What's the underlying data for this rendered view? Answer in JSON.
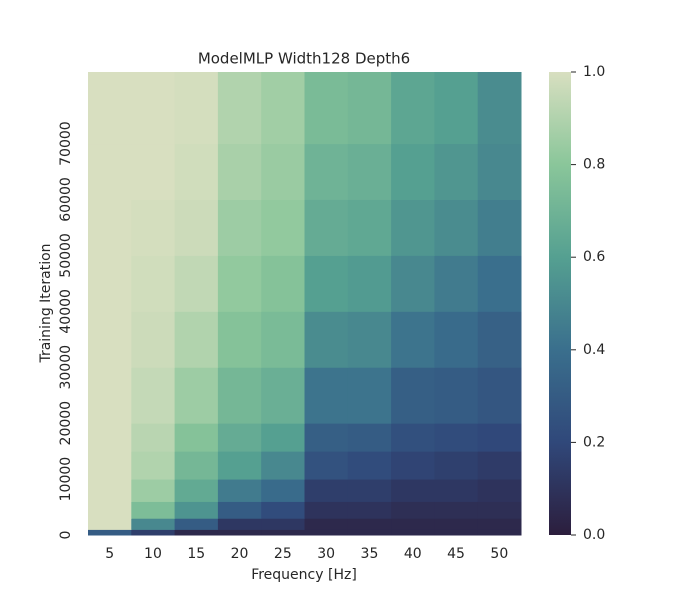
{
  "chart_data": {
    "type": "heatmap",
    "title": "ModelMLP Width128 Depth6",
    "x_label": "Frequency [Hz]",
    "y_label": "Training Iteration",
    "categories": [
      5,
      10,
      15,
      20,
      25,
      30,
      35,
      40,
      45,
      50
    ],
    "y_edges": [
      0,
      1000,
      3000,
      6000,
      10000,
      15000,
      20000,
      30000,
      40000,
      50000,
      60000,
      70000,
      82800
    ],
    "values": [
      [
        0.3,
        0.15,
        0.05,
        0.05,
        0.05,
        0.05,
        0.05,
        0.05,
        0.05,
        0.05
      ],
      [
        1.0,
        0.5,
        0.3,
        0.12,
        0.12,
        0.05,
        0.05,
        0.05,
        0.05,
        0.05
      ],
      [
        1.0,
        0.75,
        0.55,
        0.3,
        0.22,
        0.1,
        0.1,
        0.08,
        0.08,
        0.08
      ],
      [
        1.0,
        0.85,
        0.65,
        0.45,
        0.38,
        0.15,
        0.15,
        0.12,
        0.12,
        0.1
      ],
      [
        1.0,
        0.9,
        0.72,
        0.6,
        0.5,
        0.25,
        0.22,
        0.18,
        0.16,
        0.14
      ],
      [
        1.0,
        0.92,
        0.78,
        0.66,
        0.6,
        0.32,
        0.3,
        0.24,
        0.22,
        0.2
      ],
      [
        1.0,
        0.95,
        0.85,
        0.72,
        0.68,
        0.42,
        0.42,
        0.32,
        0.3,
        0.27
      ],
      [
        1.0,
        0.97,
        0.9,
        0.78,
        0.74,
        0.52,
        0.5,
        0.42,
        0.38,
        0.33
      ],
      [
        1.0,
        0.98,
        0.94,
        0.82,
        0.78,
        0.6,
        0.58,
        0.5,
        0.45,
        0.4
      ],
      [
        1.0,
        0.99,
        0.97,
        0.85,
        0.82,
        0.66,
        0.64,
        0.56,
        0.52,
        0.46
      ],
      [
        1.0,
        1.0,
        0.98,
        0.88,
        0.84,
        0.7,
        0.68,
        0.6,
        0.56,
        0.5
      ],
      [
        1.0,
        1.0,
        0.99,
        0.9,
        0.86,
        0.74,
        0.72,
        0.63,
        0.6,
        0.52
      ]
    ],
    "ylim": [
      0,
      82800
    ],
    "yticks": [
      0,
      10000,
      20000,
      30000,
      40000,
      50000,
      60000,
      70000
    ],
    "clim": [
      0,
      1
    ],
    "cticks": [
      {
        "value": 0,
        "label": "0.0"
      },
      {
        "value": 0.2,
        "label": "0.2"
      },
      {
        "value": 0.4,
        "label": "0.4"
      },
      {
        "value": 0.6,
        "label": "0.6"
      },
      {
        "value": 0.8,
        "label": "0.8"
      },
      {
        "value": 1,
        "label": "1.0"
      }
    ],
    "colormap": [
      [
        0,
        "#2c1e3d"
      ],
      [
        0.2,
        "#30487a"
      ],
      [
        0.4,
        "#3a6f8d"
      ],
      [
        0.6,
        "#55a091"
      ],
      [
        0.8,
        "#8ac69a"
      ],
      [
        1,
        "#d8dfc0"
      ]
    ]
  }
}
